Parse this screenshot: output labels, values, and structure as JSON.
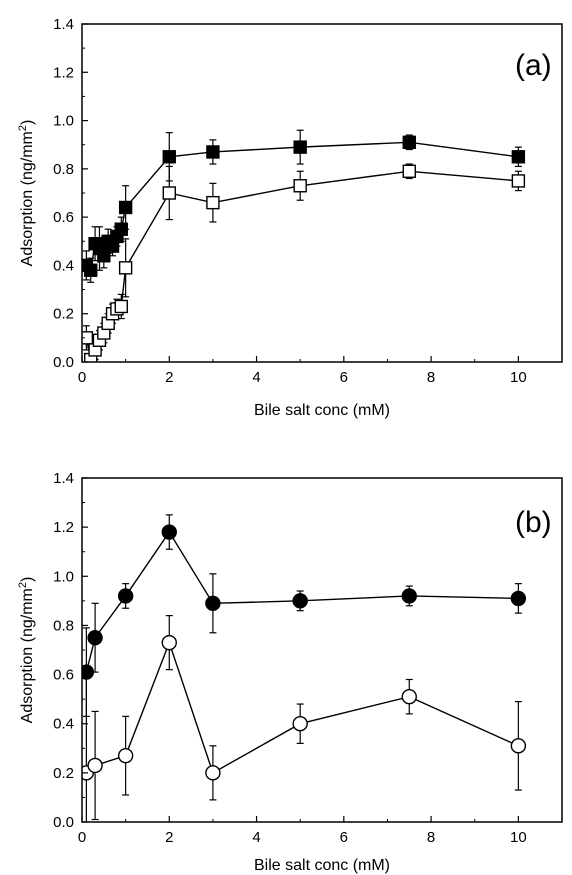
{
  "chart_data": [
    {
      "type": "scatter",
      "panel_label": "(a)",
      "xlabel": "Bile salt conc (mM)",
      "ylabel": "Adsorption (ng/mm²)",
      "ylabel_base": "Adsorption (ng/mm",
      "ylabel_sup": "2",
      "ylabel_end": ")",
      "xlim": [
        0,
        11
      ],
      "ylim": [
        0,
        1.4
      ],
      "xticks": [
        "0",
        "2",
        "4",
        "6",
        "8",
        "10"
      ],
      "yticks": [
        "0.0",
        "0.2",
        "0.4",
        "0.6",
        "0.8",
        "1.0",
        "1.2",
        "1.4"
      ],
      "grid": false,
      "series": [
        {
          "marker": "square",
          "filled": true,
          "x": [
            0.1,
            0.2,
            0.3,
            0.4,
            0.5,
            0.6,
            0.7,
            0.8,
            0.9,
            1.0,
            2.0,
            3.0,
            5.0,
            7.5,
            10.0
          ],
          "y": [
            0.4,
            0.38,
            0.49,
            0.47,
            0.44,
            0.5,
            0.48,
            0.52,
            0.55,
            0.64,
            0.85,
            0.87,
            0.89,
            0.91,
            0.85
          ],
          "err": [
            0.06,
            0.05,
            0.07,
            0.09,
            0.05,
            0.05,
            0.04,
            0.04,
            0.05,
            0.09,
            0.1,
            0.05,
            0.07,
            0.03,
            0.04
          ]
        },
        {
          "marker": "square",
          "filled": false,
          "x": [
            0.1,
            0.2,
            0.3,
            0.4,
            0.5,
            0.6,
            0.7,
            0.8,
            0.9,
            1.0,
            2.0,
            3.0,
            5.0,
            7.5,
            10.0
          ],
          "y": [
            0.1,
            0.01,
            0.05,
            0.09,
            0.12,
            0.16,
            0.2,
            0.22,
            0.23,
            0.39,
            0.7,
            0.66,
            0.73,
            0.79,
            0.75
          ],
          "err": [
            0.05,
            0.05,
            0.04,
            0.04,
            0.04,
            0.04,
            0.04,
            0.04,
            0.05,
            0.12,
            0.11,
            0.08,
            0.06,
            0.03,
            0.04
          ]
        }
      ]
    },
    {
      "type": "scatter",
      "panel_label": "(b)",
      "xlabel": "Bile salt conc (mM)",
      "ylabel": "Adsorption (ng/mm²)",
      "ylabel_base": "Adsorption (ng/mm",
      "ylabel_sup": "2",
      "ylabel_end": ")",
      "xlim": [
        0,
        11
      ],
      "ylim": [
        0,
        1.4
      ],
      "xticks": [
        "0",
        "2",
        "4",
        "6",
        "8",
        "10"
      ],
      "yticks": [
        "0.0",
        "0.2",
        "0.4",
        "0.6",
        "0.8",
        "1.0",
        "1.2",
        "1.4"
      ],
      "grid": false,
      "series": [
        {
          "marker": "circle",
          "filled": true,
          "x": [
            0.1,
            0.3,
            1.0,
            2.0,
            3.0,
            5.0,
            7.5,
            10.0
          ],
          "y": [
            0.61,
            0.75,
            0.92,
            1.18,
            0.89,
            0.9,
            0.92,
            0.91
          ],
          "err": [
            0.18,
            0.14,
            0.05,
            0.07,
            0.12,
            0.04,
            0.04,
            0.06
          ]
        },
        {
          "marker": "circle",
          "filled": false,
          "x": [
            0.1,
            0.3,
            1.0,
            2.0,
            3.0,
            5.0,
            7.5,
            10.0
          ],
          "y": [
            0.2,
            0.23,
            0.27,
            0.73,
            0.2,
            0.4,
            0.51,
            0.31
          ],
          "err": [
            0.42,
            0.22,
            0.16,
            0.11,
            0.11,
            0.08,
            0.07,
            0.18
          ]
        }
      ]
    }
  ]
}
